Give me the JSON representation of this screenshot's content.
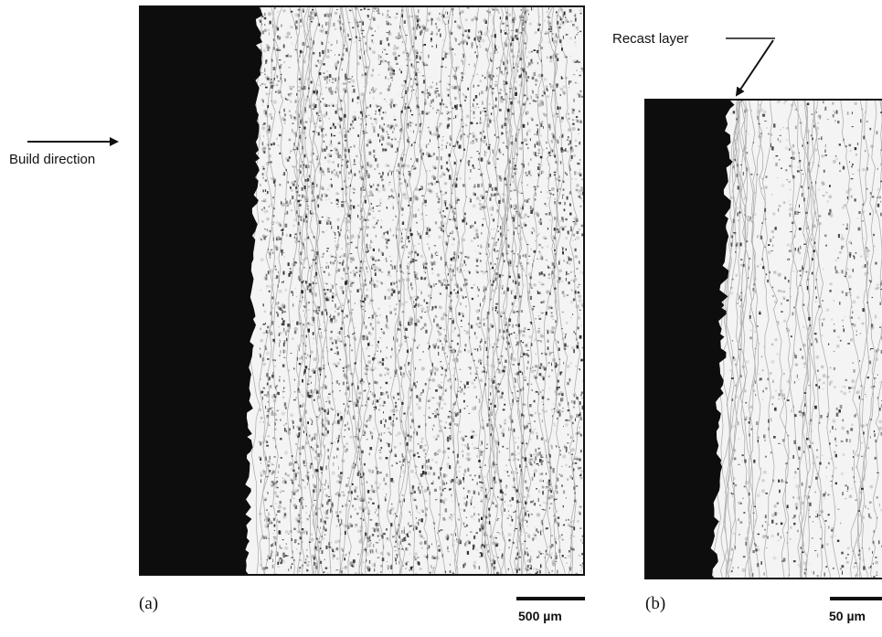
{
  "figure": {
    "panels": [
      {
        "label": "(a)",
        "scale_label": "500 µm"
      },
      {
        "label": "(b)",
        "scale_label": "50 µm"
      }
    ],
    "annotations": {
      "build_direction": "Build direction",
      "recast_layer": "Recast layer"
    }
  },
  "colors": {
    "dark_region": "#0d0d0d",
    "microstructure_background": "#f4f4f4",
    "etch_features": "#2a2a2a",
    "frame": "#111111"
  }
}
